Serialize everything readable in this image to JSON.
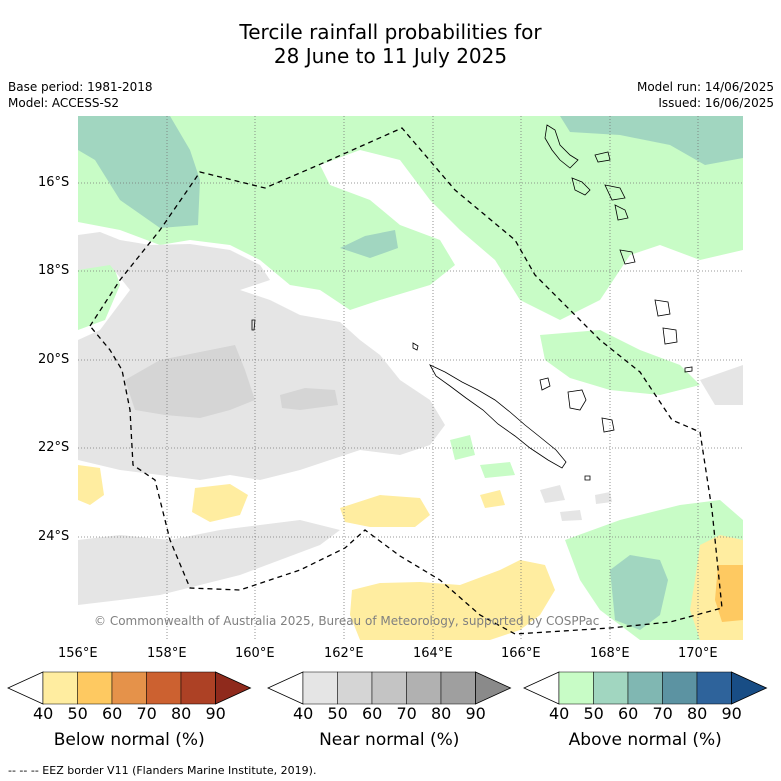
{
  "title_line1": "Tercile rainfall probabilities for",
  "title_line2": "28 June to 11 July 2025",
  "meta_left": [
    "Base period: 1981-2018",
    "Model: ACCESS-S2"
  ],
  "meta_right": [
    "Model run: 14/06/2025",
    "Issued: 16/06/2025"
  ],
  "copyright": "© Commonwealth of Australia 2025, Bureau of Meteorology, supported by COSPPac",
  "lon_labels": [
    "156°E",
    "158°E",
    "160°E",
    "162°E",
    "164°E",
    "166°E",
    "168°E",
    "170°E"
  ],
  "lat_labels": [
    "16°S",
    "18°S",
    "20°S",
    "22°S",
    "24°S"
  ],
  "colorbars": [
    {
      "title": "Below normal (%)",
      "ticks": [
        "40",
        "50",
        "60",
        "70",
        "80",
        "90"
      ],
      "colors": [
        "#ffffff",
        "#ffeda0",
        "#fec961",
        "#e5924a",
        "#cc6130",
        "#ad4125",
        "#8f2a1c"
      ]
    },
    {
      "title": "Near normal (%)",
      "ticks": [
        "40",
        "50",
        "60",
        "70",
        "80",
        "90"
      ],
      "colors": [
        "#ffffff",
        "#e5e5e5",
        "#d5d5d5",
        "#c4c4c4",
        "#b1b1b1",
        "#9f9f9f",
        "#8a8a8a"
      ]
    },
    {
      "title": "Above normal (%)",
      "ticks": [
        "40",
        "50",
        "60",
        "70",
        "80",
        "90"
      ],
      "colors": [
        "#ffffff",
        "#c8fcc6",
        "#a1d6c0",
        "#80b7b2",
        "#5c93a2",
        "#2e639b",
        "#184d85"
      ]
    }
  ],
  "footnote": "-- -- -- EEZ border V11 (Flanders Marine Institute, 2019)."
}
